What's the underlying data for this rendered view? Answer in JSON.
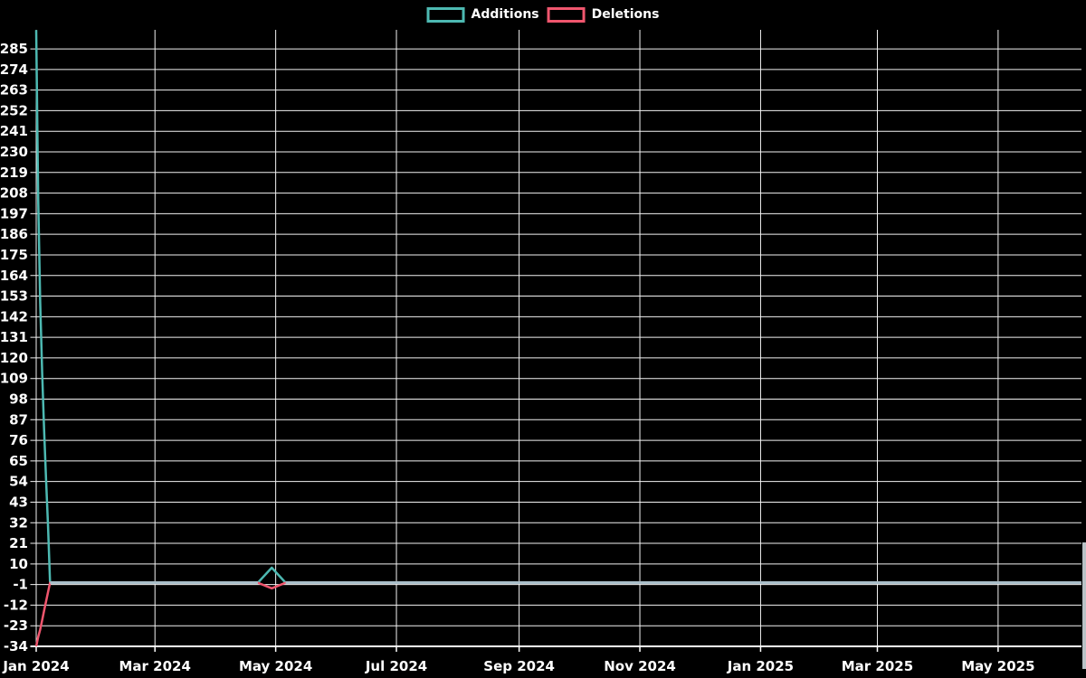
{
  "chart_data": {
    "type": "line",
    "title": "",
    "background": "#000000",
    "grid": true,
    "grid_color": "#f2f2f2",
    "axis_color": "#ffffff",
    "overlap_color": "#a9bec9",
    "legend_position": "top-center",
    "ylim": [
      -34,
      296
    ],
    "series": [
      {
        "name": "Additions",
        "color": "#4db9b2",
        "points": [
          {
            "date": "2024-01-01",
            "value": 295
          },
          {
            "date": "2024-01-02",
            "value": 205
          },
          {
            "date": "2024-01-03",
            "value": 150
          },
          {
            "date": "2024-01-04",
            "value": 112
          },
          {
            "date": "2024-01-05",
            "value": 82
          },
          {
            "date": "2024-01-06",
            "value": 55
          },
          {
            "date": "2024-01-07",
            "value": 30
          },
          {
            "date": "2024-01-08",
            "value": 0
          },
          {
            "date": "2024-04-22",
            "value": 0
          },
          {
            "date": "2024-04-29",
            "value": 8
          },
          {
            "date": "2024-05-06",
            "value": 0
          },
          {
            "date": "2025-06-12",
            "value": 0
          }
        ]
      },
      {
        "name": "Deletions",
        "color": "#f0566e",
        "points": [
          {
            "date": "2024-01-01",
            "value": -34
          },
          {
            "date": "2024-01-02",
            "value": -29
          },
          {
            "date": "2024-01-03",
            "value": -25
          },
          {
            "date": "2024-01-04",
            "value": -20
          },
          {
            "date": "2024-01-05",
            "value": -15
          },
          {
            "date": "2024-01-06",
            "value": -10
          },
          {
            "date": "2024-01-07",
            "value": -5
          },
          {
            "date": "2024-01-08",
            "value": 0
          },
          {
            "date": "2024-04-22",
            "value": 0
          },
          {
            "date": "2024-04-29",
            "value": -3
          },
          {
            "date": "2024-05-06",
            "value": 0
          },
          {
            "date": "2025-06-12",
            "value": 0
          }
        ]
      }
    ],
    "x_axis": {
      "ticks": [
        {
          "label": "Jan 2024",
          "date": "2024-01-01"
        },
        {
          "label": "Mar 2024",
          "date": "2024-03-01"
        },
        {
          "label": "May 2024",
          "date": "2024-05-01"
        },
        {
          "label": "Jul 2024",
          "date": "2024-07-01"
        },
        {
          "label": "Sep 2024",
          "date": "2024-09-01"
        },
        {
          "label": "Nov 2024",
          "date": "2024-11-01"
        },
        {
          "label": "Jan 2025",
          "date": "2025-01-01"
        },
        {
          "label": "Mar 2025",
          "date": "2025-03-01"
        },
        {
          "label": "May 2025",
          "date": "2025-05-01"
        }
      ]
    },
    "y_axis": {
      "tick_step": 11,
      "ticks": [
        285,
        274,
        263,
        252,
        241,
        230,
        219,
        208,
        197,
        186,
        175,
        164,
        153,
        142,
        131,
        120,
        109,
        98,
        87,
        76,
        65,
        54,
        43,
        32,
        21,
        10,
        -1,
        -12,
        -23,
        -34
      ]
    }
  }
}
